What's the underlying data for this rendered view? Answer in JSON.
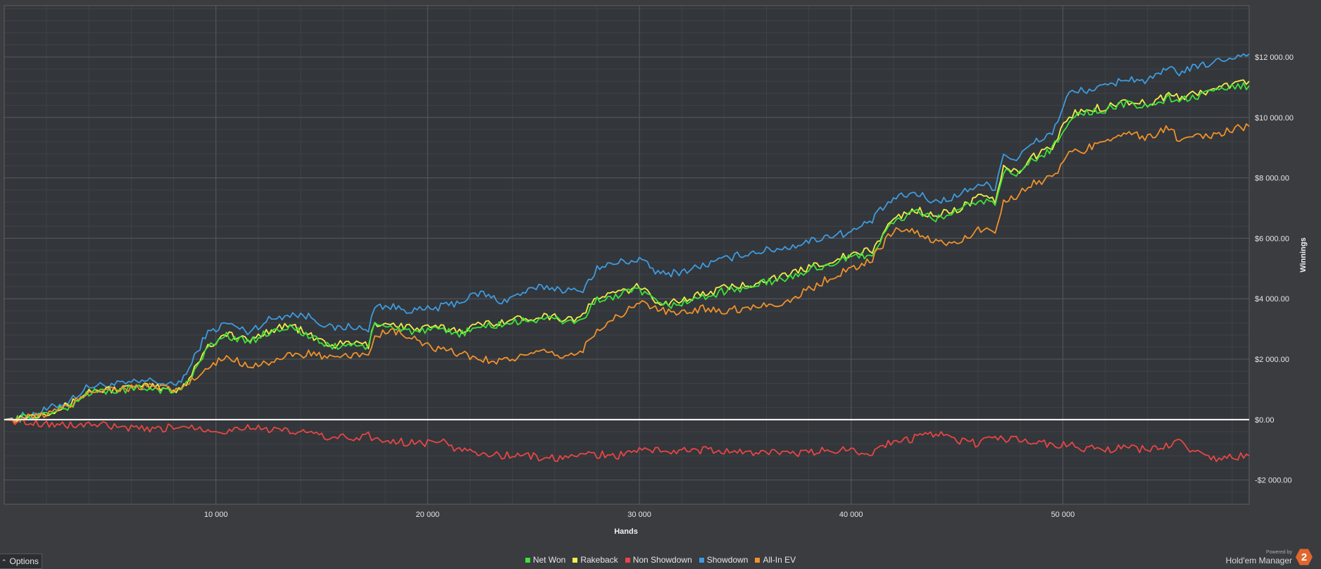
{
  "chart_data": {
    "type": "line",
    "title": "",
    "xlabel": "Hands",
    "ylabel": "Winnings",
    "xlim": [
      0,
      58800
    ],
    "ylim": [
      -2800,
      13700
    ],
    "x_ticks": [
      10000,
      20000,
      30000,
      40000,
      50000
    ],
    "x_tick_labels": [
      "10 000",
      "20 000",
      "30 000",
      "40 000",
      "50 000"
    ],
    "y_ticks": [
      -2000,
      0,
      2000,
      4000,
      6000,
      8000,
      10000,
      12000
    ],
    "y_tick_labels": [
      "-$2 000.00",
      "$0.00",
      "$2 000.00",
      "$4 000.00",
      "$6 000.00",
      "$8 000.00",
      "$10 000.00",
      "$12 000.00"
    ],
    "grid": true,
    "zero_line": true,
    "legend_position": "bottom-center",
    "series": [
      {
        "name": "Showdown",
        "color": "#3d9be0",
        "x": [
          0,
          1500,
          3000,
          4000,
          6000,
          7000,
          8000,
          8600,
          9500,
          10500,
          11500,
          12500,
          13500,
          14500,
          15500,
          16500,
          17200,
          17500,
          18500,
          19500,
          20500,
          21500,
          22500,
          23500,
          24500,
          25500,
          26500,
          27200,
          28000,
          29000,
          30000,
          31000,
          32000,
          33000,
          34000,
          35000,
          36000,
          37000,
          38000,
          39000,
          40000,
          41000,
          41500,
          42000,
          43000,
          44000,
          45000,
          46000,
          46800,
          47200,
          47800,
          48500,
          49500,
          50300,
          51000,
          52000,
          53000,
          54000,
          55000,
          55500,
          56000,
          57000,
          58000,
          58800
        ],
        "values": [
          0,
          200,
          600,
          1100,
          1200,
          1300,
          1100,
          1500,
          2800,
          3200,
          2900,
          3300,
          3500,
          3400,
          3000,
          3100,
          2900,
          3800,
          3700,
          3600,
          3700,
          3900,
          4200,
          3900,
          4200,
          4400,
          4300,
          4200,
          5000,
          5200,
          5300,
          4800,
          4900,
          5100,
          5300,
          5500,
          5600,
          5700,
          5900,
          6100,
          6200,
          6600,
          7000,
          7300,
          7500,
          7200,
          7400,
          7800,
          7700,
          8800,
          8600,
          9100,
          9500,
          10800,
          10900,
          11000,
          11300,
          11200,
          11600,
          11500,
          11600,
          11800,
          12000,
          12100
        ]
      },
      {
        "name": "Rakeback",
        "color": "#f2ee4a",
        "x": [
          0,
          1500,
          3000,
          4000,
          6000,
          7000,
          8000,
          8600,
          9500,
          10500,
          11500,
          12500,
          13500,
          14500,
          15500,
          16500,
          17200,
          17500,
          18500,
          19500,
          20500,
          21500,
          22500,
          23500,
          24500,
          25500,
          26500,
          27200,
          28000,
          29000,
          30000,
          31000,
          32000,
          33000,
          34000,
          35000,
          36000,
          37000,
          38000,
          39000,
          40000,
          41000,
          41500,
          42000,
          43000,
          44000,
          45000,
          46000,
          46800,
          47200,
          47800,
          48500,
          49500,
          50300,
          51000,
          52000,
          53000,
          54000,
          55000,
          55500,
          56000,
          57000,
          58000,
          58800
        ],
        "values": [
          0,
          150,
          450,
          950,
          1050,
          1100,
          950,
          1200,
          2350,
          2850,
          2600,
          2950,
          3150,
          2750,
          2450,
          2550,
          2450,
          3200,
          3150,
          3000,
          3050,
          2950,
          3150,
          3250,
          3350,
          3450,
          3350,
          3350,
          4050,
          4200,
          4400,
          3850,
          3950,
          4150,
          4350,
          4450,
          4650,
          4750,
          5050,
          5250,
          5450,
          5600,
          6150,
          6650,
          6950,
          6750,
          6950,
          7350,
          7250,
          8350,
          8150,
          8650,
          9050,
          10050,
          10250,
          10350,
          10550,
          10450,
          10750,
          10650,
          10750,
          10900,
          11100,
          11200
        ]
      },
      {
        "name": "Net Won",
        "color": "#3be23b",
        "x": [
          0,
          1500,
          3000,
          4000,
          6000,
          7000,
          8000,
          8600,
          9500,
          10500,
          11500,
          12500,
          13500,
          14500,
          15500,
          16500,
          17200,
          17500,
          18500,
          19500,
          20500,
          21500,
          22500,
          23500,
          24500,
          25500,
          26500,
          27200,
          28000,
          29000,
          30000,
          31000,
          32000,
          33000,
          34000,
          35000,
          36000,
          37000,
          38000,
          39000,
          40000,
          41000,
          41500,
          42000,
          43000,
          44000,
          45000,
          46000,
          46800,
          47200,
          47800,
          48500,
          49500,
          50300,
          51000,
          52000,
          53000,
          54000,
          55000,
          55500,
          56000,
          57000,
          58000,
          58800
        ],
        "values": [
          0,
          100,
          400,
          900,
          1000,
          1050,
          900,
          1150,
          2300,
          2800,
          2550,
          2900,
          3100,
          2700,
          2400,
          2500,
          2400,
          3100,
          3050,
          2900,
          2950,
          2850,
          3050,
          3150,
          3250,
          3350,
          3250,
          3250,
          3950,
          4100,
          4300,
          3750,
          3850,
          4050,
          4250,
          4350,
          4550,
          4650,
          4950,
          5150,
          5350,
          5500,
          6050,
          6550,
          6850,
          6650,
          6850,
          7250,
          7150,
          8250,
          8050,
          8550,
          8950,
          9950,
          10150,
          10250,
          10450,
          10350,
          10650,
          10550,
          10650,
          10800,
          11000,
          11050
        ]
      },
      {
        "name": "All-In EV",
        "color": "#f0912a",
        "x": [
          0,
          1500,
          3000,
          4000,
          6000,
          7000,
          8000,
          8600,
          9500,
          10500,
          11500,
          12500,
          13500,
          14500,
          15500,
          16500,
          17200,
          17500,
          18500,
          19500,
          20500,
          21500,
          22500,
          23500,
          24500,
          25500,
          26500,
          27200,
          28000,
          29000,
          30000,
          31000,
          32000,
          33000,
          34000,
          35000,
          36000,
          37000,
          38000,
          39000,
          40000,
          41000,
          41500,
          42000,
          43000,
          44000,
          45000,
          46000,
          46800,
          47200,
          47800,
          48500,
          49500,
          50300,
          51000,
          52000,
          53000,
          54000,
          55000,
          55500,
          56000,
          57000,
          58000,
          58800
        ],
        "values": [
          0,
          100,
          400,
          950,
          1050,
          1100,
          950,
          1150,
          1600,
          2100,
          1800,
          1900,
          2100,
          2200,
          2000,
          2100,
          2200,
          2800,
          2900,
          2600,
          2300,
          2200,
          2000,
          1950,
          2100,
          2200,
          2100,
          2200,
          3000,
          3400,
          3900,
          3600,
          3500,
          3700,
          3600,
          3700,
          3800,
          3900,
          4300,
          4700,
          5000,
          5300,
          5800,
          6300,
          6200,
          5900,
          5800,
          6300,
          6200,
          7300,
          7400,
          7800,
          8000,
          8800,
          8900,
          9300,
          9500,
          9300,
          9700,
          9200,
          9300,
          9400,
          9600,
          9700
        ]
      },
      {
        "name": "Non Showdown",
        "color": "#e84545",
        "x": [
          0,
          1500,
          3000,
          4000,
          6000,
          7000,
          8000,
          8600,
          9500,
          10500,
          11500,
          12500,
          13500,
          14500,
          15500,
          16500,
          17200,
          17500,
          18500,
          19500,
          20500,
          21500,
          22500,
          23500,
          24500,
          25500,
          26500,
          27200,
          28000,
          29000,
          30000,
          31000,
          32000,
          33000,
          34000,
          35000,
          36000,
          37000,
          38000,
          39000,
          40000,
          41000,
          41500,
          42000,
          43000,
          44000,
          45000,
          46000,
          46800,
          47200,
          47800,
          48500,
          49500,
          50300,
          51000,
          52000,
          53000,
          54000,
          55000,
          55500,
          56000,
          57000,
          58000,
          58800
        ],
        "values": [
          0,
          -100,
          -200,
          -150,
          -300,
          -350,
          -250,
          -200,
          -300,
          -400,
          -200,
          -350,
          -400,
          -450,
          -600,
          -600,
          -500,
          -700,
          -700,
          -800,
          -700,
          -1000,
          -1100,
          -1200,
          -1150,
          -1300,
          -1250,
          -1200,
          -1150,
          -1200,
          -1000,
          -1000,
          -1050,
          -1000,
          -1050,
          -1100,
          -1050,
          -1150,
          -1100,
          -1000,
          -1000,
          -1100,
          -800,
          -800,
          -600,
          -450,
          -700,
          -800,
          -550,
          -700,
          -600,
          -750,
          -800,
          -850,
          -950,
          -1000,
          -950,
          -1000,
          -850,
          -700,
          -1000,
          -1300,
          -1250,
          -1200
        ]
      }
    ]
  },
  "legend": [
    {
      "name": "Net Won",
      "color": "#3be23b"
    },
    {
      "name": "Rakeback",
      "color": "#f2ee4a"
    },
    {
      "name": "Non Showdown",
      "color": "#e84545"
    },
    {
      "name": "Showdown",
      "color": "#3d9be0"
    },
    {
      "name": "All-In EV",
      "color": "#f0912a"
    }
  ],
  "options_label": "Options",
  "brand": {
    "powered_by": "Powered by",
    "name": "Hold'em Manager",
    "badge": "2"
  }
}
